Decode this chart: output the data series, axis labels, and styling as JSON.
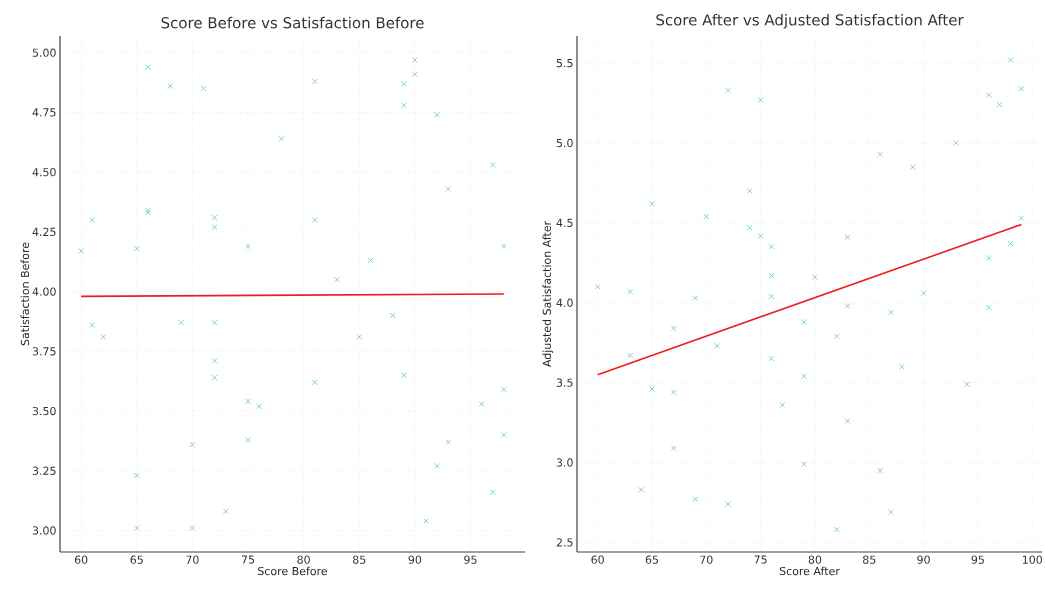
{
  "chart_data": [
    {
      "type": "scatter",
      "title": "Score Before vs Satisfaction Before",
      "xlabel": "Score Before",
      "ylabel": "Satisfaction Before",
      "xlim": [
        58.1,
        99.9
      ],
      "ylim": [
        2.91,
        5.07
      ],
      "xticks": [
        60,
        65,
        70,
        75,
        80,
        85,
        90,
        95
      ],
      "yticks": [
        {
          "value": 3.0,
          "label": "3.00"
        },
        {
          "value": 3.25,
          "label": "3.25"
        },
        {
          "value": 3.5,
          "label": "3.50"
        },
        {
          "value": 3.75,
          "label": "3.75"
        },
        {
          "value": 4.0,
          "label": "4.00"
        },
        {
          "value": 4.25,
          "label": "4.25"
        },
        {
          "value": 4.5,
          "label": "4.50"
        },
        {
          "value": 4.75,
          "label": "4.75"
        },
        {
          "value": 5.0,
          "label": "5.00"
        }
      ],
      "grid": true,
      "series": [
        {
          "marker": "cross",
          "color": "#4cc4a0",
          "x": [
            60,
            61,
            65,
            66,
            66,
            66,
            68,
            71,
            72,
            72,
            75,
            78,
            81,
            81,
            83,
            86,
            89,
            89,
            90,
            90,
            92,
            93,
            97,
            98,
            61,
            62,
            69,
            72,
            72,
            72,
            75,
            76,
            70,
            75,
            65,
            65,
            70,
            73,
            81,
            85,
            88,
            89,
            96,
            98,
            98,
            93,
            92,
            97,
            91
          ],
          "values": [
            4.17,
            4.3,
            4.18,
            4.94,
            4.34,
            4.33,
            4.86,
            4.85,
            4.31,
            4.27,
            4.19,
            4.64,
            4.88,
            4.3,
            4.05,
            4.13,
            4.87,
            4.78,
            4.97,
            4.91,
            4.74,
            4.43,
            4.53,
            4.19,
            3.86,
            3.81,
            3.87,
            3.87,
            3.71,
            3.64,
            3.54,
            3.52,
            3.36,
            3.38,
            3.23,
            3.01,
            3.01,
            3.08,
            3.62,
            3.81,
            3.9,
            3.65,
            3.53,
            3.59,
            3.4,
            3.37,
            3.27,
            3.16,
            3.04
          ]
        },
        {
          "type": "line",
          "color": "#ee1c1c",
          "x": [
            60,
            98
          ],
          "values": [
            3.98,
            3.99
          ]
        }
      ]
    },
    {
      "type": "scatter",
      "title": "Score After vs Adjusted Satisfaction After",
      "xlabel": "Score After",
      "ylabel": "Adjusted Satisfaction After",
      "xlim": [
        58.1,
        100.9
      ],
      "ylim": [
        2.44,
        5.67
      ],
      "xticks": [
        60,
        65,
        70,
        75,
        80,
        85,
        90,
        95,
        100
      ],
      "yticks": [
        {
          "value": 2.5,
          "label": "2.5"
        },
        {
          "value": 3.0,
          "label": "3.0"
        },
        {
          "value": 3.5,
          "label": "3.5"
        },
        {
          "value": 4.0,
          "label": "4.0"
        },
        {
          "value": 4.5,
          "label": "4.5"
        },
        {
          "value": 5.0,
          "label": "5.0"
        },
        {
          "value": 5.5,
          "label": "5.5"
        }
      ],
      "grid": true,
      "series": [
        {
          "marker": "cross",
          "color": "#4cc4a0",
          "x": [
            60,
            63,
            65,
            70,
            72,
            74,
            74,
            75,
            75,
            76,
            76,
            80,
            83,
            86,
            89,
            93,
            96,
            97,
            98,
            99,
            99,
            98,
            96,
            90,
            69,
            76,
            63,
            65,
            67,
            67,
            67,
            64,
            69,
            72,
            71,
            76,
            77,
            79,
            79,
            79,
            82,
            82,
            83,
            83,
            86,
            87,
            87,
            88,
            94,
            96
          ],
          "values": [
            4.1,
            4.07,
            4.62,
            4.54,
            5.33,
            4.7,
            4.47,
            5.27,
            4.42,
            4.35,
            4.17,
            4.16,
            4.41,
            4.93,
            4.85,
            5.0,
            5.3,
            5.24,
            5.52,
            5.34,
            4.53,
            4.37,
            4.28,
            4.06,
            4.03,
            4.04,
            3.67,
            3.46,
            3.84,
            3.44,
            3.09,
            2.83,
            2.77,
            2.74,
            3.73,
            3.65,
            3.36,
            3.88,
            3.54,
            2.99,
            3.79,
            2.58,
            3.98,
            3.26,
            2.95,
            3.94,
            2.69,
            3.6,
            3.49,
            3.97
          ]
        },
        {
          "type": "line",
          "color": "#ee1c1c",
          "x": [
            60,
            99
          ],
          "values": [
            3.55,
            4.49
          ]
        }
      ]
    }
  ]
}
